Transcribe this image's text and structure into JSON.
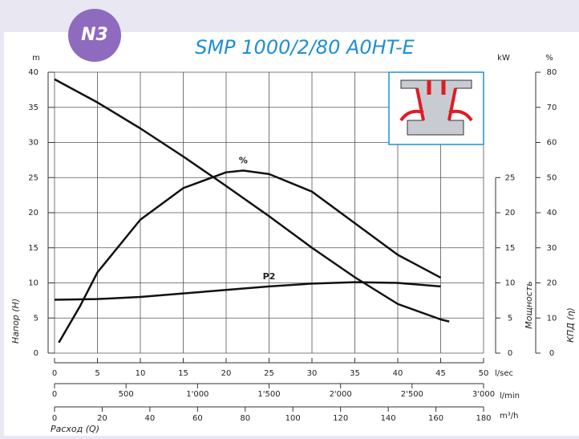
{
  "chart_data": {
    "type": "line",
    "badge": "N3",
    "title": "SMP 1000/2/80 A0HT-E",
    "y_unit": "m",
    "y2_unit": "kW",
    "y3_unit": "%",
    "y_label": "Напор (H)",
    "y2_label": "Мощность",
    "y3_label": "КПД (η)",
    "x_label": "Расход (Q)",
    "x_unit": "l/sec",
    "x2_unit": "l/min",
    "x3_unit": "m³/h",
    "xlim": [
      0,
      50
    ],
    "xticks": [
      0,
      5,
      10,
      15,
      20,
      25,
      30,
      35,
      40,
      45,
      50
    ],
    "x2lim": [
      0,
      3000
    ],
    "x2ticks": [
      0,
      500,
      {
        "value": 1000,
        "label": "1'000"
      },
      {
        "value": 1500,
        "label": "1'500"
      },
      {
        "value": 2000,
        "label": "2'000"
      },
      {
        "value": 2500,
        "label": "2'500"
      },
      {
        "value": 3000,
        "label": "3'000"
      }
    ],
    "x3lim": [
      0,
      180
    ],
    "x3ticks": [
      0,
      20,
      40,
      60,
      80,
      100,
      120,
      140,
      160,
      180
    ],
    "ylim": [
      0,
      40
    ],
    "yticks": [
      0,
      5,
      10,
      15,
      20,
      25,
      30,
      35,
      40
    ],
    "y2lim": [
      0,
      40
    ],
    "y2ticks": [
      0,
      5,
      10,
      15,
      20,
      25
    ],
    "y3lim": [
      0,
      80
    ],
    "y3ticks": [
      0,
      10,
      20,
      30,
      40,
      50,
      60,
      70,
      80
    ],
    "grid": true,
    "series": [
      {
        "axis": "y",
        "color": "#111111",
        "x": [
          0,
          5,
          10,
          15,
          20,
          25,
          30,
          35,
          40,
          45,
          46
        ],
        "values": [
          39,
          35.7,
          32,
          28,
          23.8,
          19.5,
          15,
          10.8,
          7,
          4.8,
          4.5
        ]
      },
      {
        "name": "%",
        "axis": "y3",
        "color": "#111111",
        "x": [
          0.5,
          3,
          5,
          10,
          15,
          20,
          22,
          25,
          30,
          35,
          40,
          45
        ],
        "values": [
          3,
          13.5,
          23,
          38,
          47,
          51.5,
          52,
          51,
          46,
          37,
          28,
          21.5
        ]
      },
      {
        "name": "P2",
        "axis": "y2",
        "color": "#111111",
        "x": [
          0,
          5,
          10,
          15,
          20,
          25,
          30,
          35,
          40,
          45
        ],
        "values": [
          7.6,
          7.7,
          8,
          8.5,
          9,
          9.5,
          9.9,
          10.1,
          10,
          9.5
        ]
      }
    ]
  }
}
